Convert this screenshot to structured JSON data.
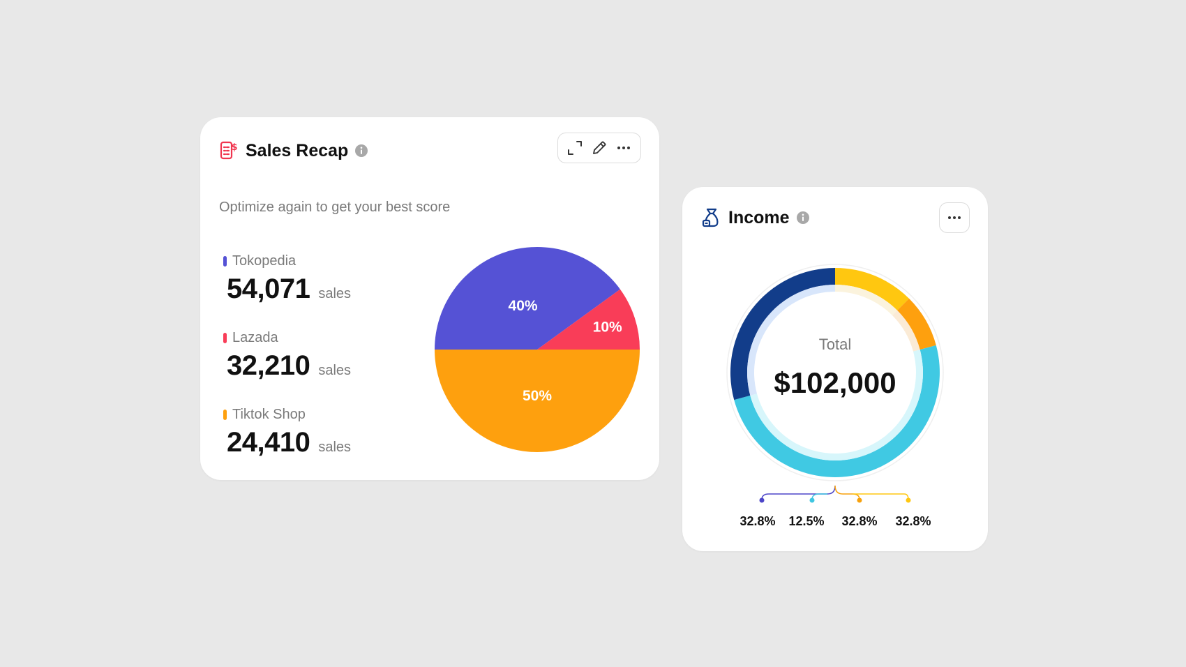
{
  "sales_recap": {
    "title": "Sales Recap",
    "subtitle": "Optimize again to get your best score",
    "colors": {
      "icon": "#f0364f"
    },
    "legend": [
      {
        "label": "Tokopedia",
        "value": "54,071",
        "unit": "sales",
        "color": "#5552d5"
      },
      {
        "label": "Lazada",
        "value": "32,210",
        "unit": "sales",
        "color": "#f93d58"
      },
      {
        "label": "Tiktok Shop",
        "value": "24,410",
        "unit": "sales",
        "color": "#fea00e"
      }
    ],
    "toolbar": {
      "icons": [
        "expand-icon",
        "pencil-icon",
        "more-icon"
      ]
    }
  },
  "income": {
    "title": "Income",
    "total_label": "Total",
    "total_value": "$102,000",
    "colors": {
      "icon": "#123d8a"
    },
    "percent_labels": [
      "32.8%",
      "12.5%",
      "32.8%",
      "32.8%"
    ],
    "marker_colors": [
      "#4c45c8",
      "#3fc6e1",
      "#f7a10c",
      "#ffc710"
    ]
  },
  "chart_data": [
    {
      "type": "pie",
      "categories": [
        "Tokopedia",
        "Lazada",
        "Tiktok Shop"
      ],
      "values": [
        40,
        10,
        50
      ],
      "labels": [
        "40%",
        "10%",
        "50%"
      ],
      "colors": [
        "#5552d5",
        "#f93d58",
        "#fea00e"
      ]
    },
    {
      "type": "pie",
      "variant": "donut",
      "values": [
        12.5,
        8.3,
        50,
        29.2
      ],
      "colors": [
        "#ffc710",
        "#fea00e",
        "#40c9e3",
        "#123d8a"
      ],
      "inner_colors": [
        "#fbf3dd",
        "#fbebd6",
        "#d7f6fb",
        "#d8e6fb"
      ]
    }
  ]
}
